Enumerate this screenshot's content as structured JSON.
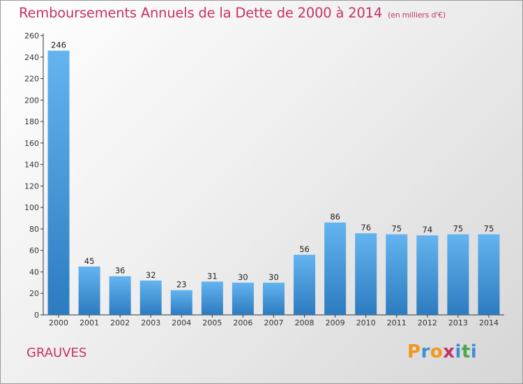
{
  "header": {
    "title": "Remboursements Annuels de la Dette de 2000 à 2014",
    "unit": "(en milliers d'€)"
  },
  "footer": {
    "commune": "GRAUVES",
    "logo": "Proxiti"
  },
  "colors": {
    "title": "#c4336a",
    "bar_light": "#64b4f0",
    "bar_dark": "#2c7bc0"
  },
  "chart_data": {
    "type": "bar",
    "categories": [
      "2000",
      "2001",
      "2002",
      "2003",
      "2004",
      "2005",
      "2006",
      "2007",
      "2008",
      "2009",
      "2010",
      "2011",
      "2012",
      "2013",
      "2014"
    ],
    "values": [
      246,
      45,
      36,
      32,
      23,
      31,
      30,
      30,
      56,
      86,
      76,
      75,
      74,
      75,
      75
    ],
    "ylim": [
      0,
      260
    ],
    "yticks": [
      0,
      20,
      40,
      60,
      80,
      100,
      120,
      140,
      160,
      180,
      200,
      220,
      240,
      260
    ],
    "grid": false,
    "data_labels": true
  }
}
